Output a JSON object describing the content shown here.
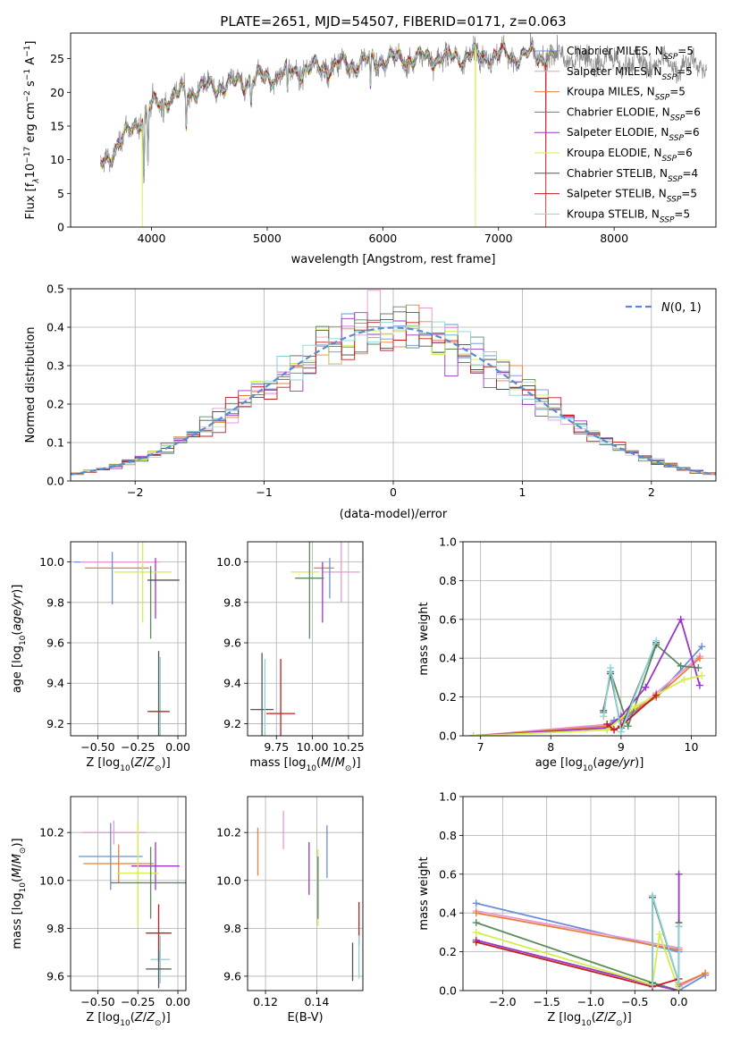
{
  "figure_title": "PLATE=2651, MJD=54507, FIBERID=0171, z=0.063",
  "colors": {
    "Chabrier MILES": "#6a8fd8",
    "Salpeter MILES": "#e59ad6",
    "Kroupa MILES": "#e8803a",
    "Chabrier ELODIE": "#5b8a5f",
    "Salpeter ELODIE": "#9a35c4",
    "Kroupa ELODIE": "#d4ee4a",
    "Chabrier STELIB": "#555555",
    "Salpeter STELIB": "#c11d1d",
    "Kroupa STELIB": "#8ed4d4"
  },
  "chart_data": [
    {
      "id": "spectrum",
      "type": "line",
      "title": "PLATE=2651, MJD=54507, FIBERID=0171, z=0.063",
      "xlabel": "wavelength [Angstrom, rest frame]",
      "ylabel": "Flux [fλ10⁻¹⁷ erg cm⁻² s⁻¹ A⁻¹]",
      "xlim": [
        3300,
        8880
      ],
      "ylim": [
        0,
        28.8
      ],
      "xticks": [
        4000,
        5000,
        6000,
        7000,
        8000
      ],
      "yticks": [
        0,
        5,
        10,
        15,
        20,
        25
      ],
      "grid": false,
      "legend_position": "right",
      "legend": [
        {
          "label": "Chabrier MILES, N",
          "sub": "SSP",
          "tail": "=5",
          "series": "Chabrier MILES"
        },
        {
          "label": "Salpeter MILES, N",
          "sub": "SSP",
          "tail": "=5",
          "series": "Salpeter MILES"
        },
        {
          "label": "Kroupa MILES, N",
          "sub": "SSP",
          "tail": "=5",
          "series": "Kroupa MILES"
        },
        {
          "label": "Chabrier ELODIE, N",
          "sub": "SSP",
          "tail": "=6",
          "series": "Chabrier ELODIE"
        },
        {
          "label": "Salpeter ELODIE, N",
          "sub": "SSP",
          "tail": "=6",
          "series": "Salpeter ELODIE"
        },
        {
          "label": "Kroupa ELODIE, N",
          "sub": "SSP",
          "tail": "=6",
          "series": "Kroupa ELODIE"
        },
        {
          "label": "Chabrier STELIB, N",
          "sub": "SSP",
          "tail": "=4",
          "series": "Chabrier STELIB"
        },
        {
          "label": "Salpeter STELIB, N",
          "sub": "SSP",
          "tail": "=5",
          "series": "Salpeter STELIB"
        },
        {
          "label": "Kroupa STELIB, N",
          "sub": "SSP",
          "tail": "=5",
          "series": "Kroupa STELIB"
        }
      ],
      "observed_spectrum": {
        "x_range": [
          3560,
          8800
        ],
        "continuum_anchors": [
          [
            3560,
            9
          ],
          [
            3650,
            11
          ],
          [
            3800,
            14
          ],
          [
            3950,
            17
          ],
          [
            4100,
            19
          ],
          [
            4400,
            20.5
          ],
          [
            4800,
            21.5
          ],
          [
            5200,
            23
          ],
          [
            5600,
            24
          ],
          [
            6000,
            24.8
          ],
          [
            6500,
            25.2
          ],
          [
            7000,
            25.5
          ],
          [
            7500,
            25.3
          ],
          [
            8000,
            24.5
          ],
          [
            8800,
            24
          ]
        ],
        "absorption_lines": [
          [
            3934,
            10
          ],
          [
            3969,
            8
          ],
          [
            4102,
            3
          ],
          [
            4300,
            5
          ],
          [
            4861,
            3
          ],
          [
            5175,
            4
          ],
          [
            5893,
            5
          ],
          [
            6563,
            2
          ]
        ],
        "noise_sigma": 1.2
      },
      "model_spectra": {
        "x_range": [
          3560,
          7480
        ],
        "scatter_between_models": 0.35,
        "dropouts": [
          {
            "series": "Kroupa ELODIE",
            "x": 3920
          },
          {
            "series": "Kroupa ELODIE",
            "x": 6800
          },
          {
            "series": "Salpeter STELIB",
            "x": 7410
          }
        ]
      }
    },
    {
      "id": "residual_hist",
      "type": "histogram",
      "xlabel": "(data-model)/error",
      "ylabel": "Normed distribution",
      "xlim": [
        -2.5,
        2.5
      ],
      "ylim": [
        0,
        0.5
      ],
      "xticks": [
        -2,
        -1,
        0,
        1,
        2
      ],
      "yticks": [
        0.0,
        0.1,
        0.2,
        0.3,
        0.4,
        0.5
      ],
      "grid": true,
      "bins": 50,
      "bin_width": 0.1,
      "reference_curve": {
        "label": "N(0, 1)",
        "style": "dashed",
        "color": "#5a8ad0",
        "mean": 0,
        "sigma": 1
      },
      "series_jitter": [
        0.9,
        1.1,
        0.95,
        1.05,
        1.2,
        0.85,
        1.0,
        1.15,
        0.92
      ],
      "legend_position": "top-right"
    },
    {
      "id": "age_vs_Z",
      "type": "errorbar",
      "xlabel": "Z [log10(Z/Z⊙)]",
      "ylabel": "age  [log10(age/yr)]",
      "xlim": [
        -0.67,
        0.05
      ],
      "ylim": [
        9.14,
        10.1
      ],
      "xticks": [
        -0.5,
        -0.25,
        0.0
      ],
      "yticks": [
        9.2,
        9.4,
        9.6,
        9.8,
        10.0
      ],
      "grid": true,
      "points": [
        {
          "series": "Chabrier MILES",
          "x": -0.4,
          "xerr": 0.25,
          "y": 10.0,
          "yerr": 0.0
        },
        {
          "series": "Salpeter MILES",
          "x": -0.36,
          "xerr": 0.25,
          "y": 10.0,
          "yerr": 0.0
        },
        {
          "series": "Kroupa MILES",
          "x": -0.38,
          "xerr": 0.2,
          "y": 9.97,
          "yerr": 0.0
        },
        {
          "series": "Chabrier MILES",
          "x": -0.41,
          "xerr": 0.0,
          "y": 9.92,
          "yerr": 0.13
        },
        {
          "series": "Salpeter ELODIE",
          "x": -0.14,
          "xerr": 0.0,
          "y": 9.87,
          "yerr": 0.15
        },
        {
          "series": "Kroupa ELODIE",
          "x": -0.22,
          "xerr": 0.18,
          "y": 9.95,
          "yerr": 0.25
        },
        {
          "series": "Chabrier ELODIE",
          "x": -0.17,
          "xerr": 0.0,
          "y": 9.8,
          "yerr": 0.18
        },
        {
          "series": "Chabrier STELIB",
          "x": -0.09,
          "xerr": 0.1,
          "y": 9.91,
          "yerr": 0.0
        },
        {
          "series": "Chabrier STELIB",
          "x": -0.12,
          "xerr": 0.07,
          "y": 9.26,
          "yerr": 0.3
        },
        {
          "series": "Kroupa STELIB",
          "x": -0.11,
          "xerr": 0.0,
          "y": 9.26,
          "yerr": 0.27
        },
        {
          "series": "Salpeter STELIB",
          "x": -0.12,
          "xerr": 0.06,
          "y": 9.26,
          "yerr": 0.0
        }
      ]
    },
    {
      "id": "age_vs_mass",
      "type": "errorbar",
      "xlabel": "mass [log10(M/M⊙)]",
      "ylabel": "",
      "xlim": [
        9.55,
        10.35
      ],
      "ylim": [
        9.14,
        10.1
      ],
      "xticks": [
        9.75,
        10.0,
        10.25
      ],
      "yticks": [
        9.2,
        9.4,
        9.6,
        9.8,
        10.0
      ],
      "grid": true,
      "points": [
        {
          "series": "Salpeter MILES",
          "x": 10.2,
          "xerr": 0.13,
          "y": 9.95,
          "yerr": 0.15
        },
        {
          "series": "Kroupa MILES",
          "x": 10.08,
          "xerr": 0.07,
          "y": 9.97,
          "yerr": 0.0
        },
        {
          "series": "Kroupa ELODIE",
          "x": 9.95,
          "xerr": 0.1,
          "y": 9.95,
          "yerr": 0.0
        },
        {
          "series": "Chabrier MILES",
          "x": 10.12,
          "xerr": 0.0,
          "y": 9.92,
          "yerr": 0.1
        },
        {
          "series": "Salpeter ELODIE",
          "x": 10.07,
          "xerr": 0.0,
          "y": 9.85,
          "yerr": 0.15
        },
        {
          "series": "Chabrier ELODIE",
          "x": 9.98,
          "xerr": 0.1,
          "y": 9.92,
          "yerr": 0.3
        },
        {
          "series": "Chabrier STELIB",
          "x": 9.65,
          "xerr": 0.08,
          "y": 9.27,
          "yerr": 0.28
        },
        {
          "series": "Kroupa STELIB",
          "x": 9.67,
          "xerr": 0.0,
          "y": 9.27,
          "yerr": 0.25
        },
        {
          "series": "Salpeter STELIB",
          "x": 9.78,
          "xerr": 0.1,
          "y": 9.25,
          "yerr": 0.27
        }
      ]
    },
    {
      "id": "weight_vs_age",
      "type": "line",
      "xlabel": "age  [log10(age/yr)]",
      "ylabel": "mass weight",
      "xlim": [
        6.75,
        10.35
      ],
      "ylim": [
        0,
        1.0
      ],
      "xticks": [
        7,
        8,
        9,
        10
      ],
      "yticks": [
        0.0,
        0.2,
        0.4,
        0.6,
        0.8,
        1.0
      ],
      "grid": true,
      "marker": "+",
      "series": [
        {
          "name": "Chabrier MILES",
          "x": [
            6.9,
            8.8,
            8.9,
            9.1,
            9.5,
            10.15
          ],
          "y": [
            0.0,
            0.05,
            0.08,
            0.1,
            0.2,
            0.46
          ]
        },
        {
          "name": "Salpeter MILES",
          "x": [
            6.9,
            8.85,
            9.0,
            9.5,
            10.12
          ],
          "y": [
            0.0,
            0.06,
            0.08,
            0.22,
            0.41
          ]
        },
        {
          "name": "Kroupa MILES",
          "x": [
            6.9,
            8.85,
            9.0,
            9.5,
            10.12
          ],
          "y": [
            0.0,
            0.05,
            0.09,
            0.2,
            0.4
          ]
        },
        {
          "name": "Chabrier ELODIE",
          "x": [
            8.75,
            8.85,
            9.1,
            9.5,
            9.85,
            10.1
          ],
          "y": [
            0.12,
            0.33,
            0.05,
            0.47,
            0.36,
            0.35
          ]
        },
        {
          "name": "Salpeter ELODIE",
          "x": [
            6.9,
            8.8,
            9.0,
            9.35,
            9.85,
            10.12
          ],
          "y": [
            0.0,
            0.04,
            0.1,
            0.25,
            0.6,
            0.26
          ]
        },
        {
          "name": "Kroupa ELODIE",
          "x": [
            6.9,
            8.8,
            9.2,
            9.5,
            9.9,
            10.15
          ],
          "y": [
            0.0,
            0.03,
            0.15,
            0.21,
            0.29,
            0.31
          ]
        },
        {
          "name": "Chabrier STELIB",
          "x": [
            8.75,
            8.85,
            9.0,
            9.5
          ],
          "y": [
            0.13,
            0.32,
            0.04,
            0.48
          ]
        },
        {
          "name": "Salpeter STELIB",
          "x": [
            8.8,
            8.9,
            9.0,
            9.5
          ],
          "y": [
            0.06,
            0.03,
            0.05,
            0.21
          ]
        },
        {
          "name": "Kroupa STELIB",
          "x": [
            8.75,
            8.85,
            9.0,
            9.5
          ],
          "y": [
            0.1,
            0.35,
            0.02,
            0.49
          ]
        }
      ]
    },
    {
      "id": "mass_vs_Z",
      "type": "errorbar",
      "xlabel": "Z [log10(Z/Z⊙)]",
      "ylabel": "mass [log10(M/M⊙)]",
      "xlim": [
        -0.67,
        0.05
      ],
      "ylim": [
        9.54,
        10.35
      ],
      "xticks": [
        -0.5,
        -0.25,
        0.0
      ],
      "yticks": [
        9.6,
        9.8,
        10.0,
        10.2
      ],
      "grid": true,
      "points": [
        {
          "series": "Salpeter MILES",
          "x": -0.4,
          "xerr": 0.2,
          "y": 10.2,
          "yerr": 0.05
        },
        {
          "series": "Chabrier MILES",
          "x": -0.42,
          "xerr": 0.2,
          "y": 10.1,
          "yerr": 0.14
        },
        {
          "series": "Kroupa MILES",
          "x": -0.37,
          "xerr": 0.22,
          "y": 10.07,
          "yerr": 0.08
        },
        {
          "series": "Salpeter ELODIE",
          "x": -0.14,
          "xerr": 0.15,
          "y": 10.06,
          "yerr": 0.1
        },
        {
          "series": "Kroupa ELODIE",
          "x": -0.25,
          "xerr": 0.13,
          "y": 10.03,
          "yerr": 0.22
        },
        {
          "series": "Chabrier ELODIE",
          "x": -0.17,
          "xerr": 0.25,
          "y": 9.99,
          "yerr": 0.15
        },
        {
          "series": "Salpeter STELIB",
          "x": -0.12,
          "xerr": 0.08,
          "y": 9.78,
          "yerr": 0.12
        },
        {
          "series": "Kroupa STELIB",
          "x": -0.11,
          "xerr": 0.06,
          "y": 9.67,
          "yerr": 0.1
        },
        {
          "series": "Chabrier STELIB",
          "x": -0.12,
          "xerr": 0.08,
          "y": 9.63,
          "yerr": 0.08
        }
      ]
    },
    {
      "id": "mass_vs_ebv",
      "type": "errorbar",
      "xlabel": "E(B-V)",
      "ylabel": "",
      "xlim": [
        0.113,
        0.158
      ],
      "ylim": [
        9.54,
        10.35
      ],
      "xticks": [
        0.12,
        0.14
      ],
      "yticks": [
        9.6,
        9.8,
        10.0,
        10.2
      ],
      "grid": true,
      "points": [
        {
          "series": "Kroupa MILES",
          "x": 0.117,
          "xerr": 0.0,
          "y": 10.12,
          "yerr": 0.1
        },
        {
          "series": "Salpeter MILES",
          "x": 0.127,
          "xerr": 0.0,
          "y": 10.21,
          "yerr": 0.08
        },
        {
          "series": "Salpeter ELODIE",
          "x": 0.137,
          "xerr": 0.0,
          "y": 10.05,
          "yerr": 0.11
        },
        {
          "series": "Chabrier MILES",
          "x": 0.144,
          "xerr": 0.0,
          "y": 10.12,
          "yerr": 0.11
        },
        {
          "series": "Kroupa ELODIE",
          "x": 0.1405,
          "xerr": 0.0,
          "y": 9.97,
          "yerr": 0.16
        },
        {
          "series": "Chabrier ELODIE",
          "x": 0.1405,
          "xerr": 0.0,
          "y": 9.97,
          "yerr": 0.13
        },
        {
          "series": "Salpeter STELIB",
          "x": 0.1565,
          "xerr": 0.0,
          "y": 9.82,
          "yerr": 0.09
        },
        {
          "series": "Chabrier STELIB",
          "x": 0.154,
          "xerr": 0.0,
          "y": 9.66,
          "yerr": 0.08
        },
        {
          "series": "Kroupa STELIB",
          "x": 0.1565,
          "xerr": 0.0,
          "y": 9.68,
          "yerr": 0.09
        }
      ]
    },
    {
      "id": "weight_vs_Z",
      "type": "line",
      "xlabel": "Z [log10(Z/Z⊙)]",
      "ylabel": "mass weight",
      "xlim": [
        -2.45,
        0.42
      ],
      "ylim": [
        0,
        1.0
      ],
      "xticks": [
        -2.0,
        -1.5,
        -1.0,
        -0.5,
        0.0
      ],
      "yticks": [
        0.0,
        0.2,
        0.4,
        0.6,
        0.8,
        1.0
      ],
      "grid": true,
      "marker": "+",
      "series": [
        {
          "name": "Chabrier MILES",
          "x": [
            -2.3,
            0.0,
            0.0,
            0.3
          ],
          "y": [
            0.45,
            0.2,
            0.0,
            0.08
          ]
        },
        {
          "name": "Salpeter MILES",
          "x": [
            -2.3,
            0.0,
            0.0,
            0.3
          ],
          "y": [
            0.41,
            0.22,
            0.02,
            0.09
          ]
        },
        {
          "name": "Kroupa MILES",
          "x": [
            -2.3,
            0.0,
            0.0,
            0.3
          ],
          "y": [
            0.4,
            0.21,
            0.03,
            0.09
          ]
        },
        {
          "name": "Chabrier ELODIE",
          "x": [
            -2.3,
            -0.3,
            0.0,
            0.0
          ],
          "y": [
            0.35,
            0.04,
            0.0,
            0.33
          ]
        },
        {
          "name": "Salpeter ELODIE",
          "x": [
            -2.3,
            -0.3,
            0.0,
            0.0
          ],
          "y": [
            0.26,
            0.03,
            0.0,
            0.6
          ]
        },
        {
          "name": "Kroupa ELODIE",
          "x": [
            -2.3,
            -0.3,
            -0.22,
            0.0
          ],
          "y": [
            0.3,
            0.03,
            0.29,
            0.0
          ]
        },
        {
          "name": "Chabrier STELIB",
          "x": [
            -0.3,
            -0.3,
            0.0,
            0.0
          ],
          "y": [
            0.04,
            0.48,
            0.04,
            0.35
          ]
        },
        {
          "name": "Salpeter STELIB",
          "x": [
            -2.3,
            -0.3,
            0.0
          ],
          "y": [
            0.25,
            0.02,
            0.06
          ]
        },
        {
          "name": "Kroupa STELIB",
          "x": [
            -0.3,
            -0.3,
            0.0,
            0.0
          ],
          "y": [
            0.03,
            0.49,
            0.04,
            0.33
          ]
        }
      ]
    }
  ]
}
